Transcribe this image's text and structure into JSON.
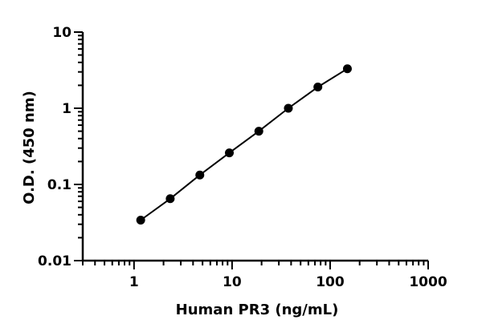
{
  "chart_data": {
    "type": "scatter",
    "title": "",
    "xlabel": "Human PR3 (ng/mL)",
    "ylabel": "O.D. (450 nm)",
    "x_scale": "log",
    "y_scale": "log",
    "xlim": [
      0.3,
      1000
    ],
    "ylim": [
      0.01,
      10
    ],
    "x_ticks": [
      {
        "value": 1,
        "label": "1"
      },
      {
        "value": 10,
        "label": "10"
      },
      {
        "value": 100,
        "label": "100"
      },
      {
        "value": 1000,
        "label": "1000"
      }
    ],
    "y_ticks": [
      {
        "value": 0.01,
        "label": "0.01"
      },
      {
        "value": 0.1,
        "label": "0.1"
      },
      {
        "value": 1,
        "label": "1"
      },
      {
        "value": 10,
        "label": "10"
      }
    ],
    "grid": false,
    "legend": "none",
    "fit_line": true,
    "series": [
      {
        "x": [
          1.17,
          2.34,
          4.69,
          9.38,
          18.75,
          37.5,
          75,
          150
        ],
        "y": [
          0.034,
          0.065,
          0.133,
          0.26,
          0.5,
          1.0,
          1.9,
          3.3
        ]
      }
    ]
  }
}
